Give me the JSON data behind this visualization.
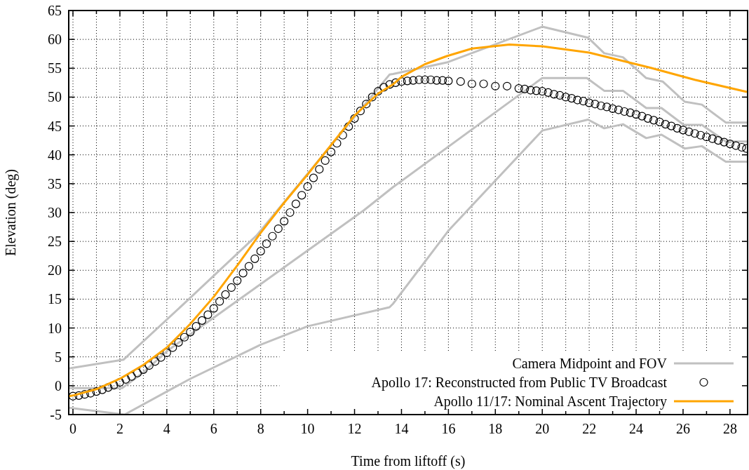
{
  "chart_data": {
    "type": "line",
    "xlabel": "Time from liftoff (s)",
    "ylabel": "Elevation (deg)",
    "xlim": [
      -0.18,
      28.75
    ],
    "ylim": [
      -5,
      65
    ],
    "xticks": [
      0,
      {
        "value": 1,
        "label": null
      },
      2,
      {
        "value": 3,
        "label": null
      },
      4,
      {
        "value": 5,
        "label": null
      },
      6,
      {
        "value": 7,
        "label": null
      },
      8,
      {
        "value": 9,
        "label": null
      },
      10,
      {
        "value": 11,
        "label": null
      },
      12,
      {
        "value": 13,
        "label": null
      },
      14,
      {
        "value": 15,
        "label": null
      },
      16,
      {
        "value": 17,
        "label": null
      },
      18,
      {
        "value": 19,
        "label": null
      },
      20,
      {
        "value": 21,
        "label": null
      },
      22,
      {
        "value": 23,
        "label": null
      },
      24,
      {
        "value": 25,
        "label": null
      },
      26,
      {
        "value": 27,
        "label": null
      },
      28
    ],
    "yticks": [
      -5,
      0,
      5,
      10,
      15,
      20,
      25,
      30,
      35,
      40,
      45,
      50,
      55,
      60,
      65
    ],
    "grid": true,
    "legend": "bottom right",
    "line_style": "solid",
    "series": [
      {
        "name": "Camera Midpoint and FOV",
        "color": "#c0c0c0",
        "x": [
          -0.18,
          2.15,
          4.94,
          7.82,
          13.49,
          13.64,
          15.93,
          20,
          21.95,
          22.64,
          23.44,
          24.43,
          25.13,
          26.07,
          26.8,
          27.82,
          28.72
        ],
        "values": [
          3,
          4.5,
          15,
          26,
          53.9,
          54,
          56,
          62.2,
          60.3,
          57.6,
          56.9,
          53.3,
          52.7,
          49.2,
          48.7,
          45.6,
          45.6
        ]
      },
      {
        "color": "#c0c0c0",
        "x": [
          -0.18,
          2.1,
          3,
          4.04,
          12.4,
          13.64,
          20,
          21.9,
          22.64,
          23.44,
          24.43,
          25.08,
          26.03,
          26.8,
          27.82,
          28.72
        ],
        "values": [
          -0.4,
          -0.4,
          2.3,
          6.1,
          30.4,
          34.4,
          53.3,
          53.3,
          51.1,
          51.1,
          48.1,
          48.1,
          45.2,
          45.2,
          42.3,
          42.3
        ]
      },
      {
        "color": "#c0c0c0",
        "x": [
          -0.18,
          2.2,
          5,
          8,
          10,
          13.49,
          13.64,
          16.03,
          20,
          21.95,
          22.64,
          23.44,
          24.43,
          25.08,
          26.07,
          26.8,
          27.82,
          28.72
        ],
        "values": [
          -3.8,
          -5,
          1.2,
          7.1,
          10.3,
          13.6,
          14.2,
          27,
          44.2,
          46.1,
          44.6,
          45.3,
          42.9,
          43.5,
          41.1,
          41.5,
          38.8,
          38.8
        ]
      },
      {
        "name": "Apollo 17: Reconstructed from Public TV Broadcast",
        "type": "scatter",
        "marker": "circle",
        "color": "#000000",
        "x": [
          0,
          0.25,
          0.5,
          0.75,
          1,
          1.25,
          1.5,
          1.75,
          2,
          2.25,
          2.5,
          2.75,
          3,
          3.25,
          3.5,
          3.75,
          4,
          4.25,
          4.5,
          4.75,
          5,
          5.25,
          5.5,
          5.75,
          6,
          6.25,
          6.5,
          6.75,
          7,
          7.25,
          7.5,
          7.75,
          8,
          8.25,
          8.5,
          8.75,
          9,
          9.25,
          9.5,
          9.75,
          10,
          10.25,
          10.5,
          10.75,
          11,
          11.25,
          11.5,
          11.75,
          12,
          12.25,
          12.5,
          12.75,
          13,
          13.25,
          13.5,
          13.75,
          14,
          14.25,
          14.5,
          14.75,
          15,
          15.25,
          15.5,
          15.75,
          16,
          16.52,
          17,
          17.5,
          18,
          18.5,
          19,
          19.25,
          19.5,
          19.75,
          20,
          20.25,
          20.5,
          20.75,
          21,
          21.25,
          21.5,
          21.75,
          22,
          22.25,
          22.5,
          22.75,
          23,
          23.25,
          23.5,
          23.75,
          24,
          24.25,
          24.5,
          24.75,
          25,
          25.25,
          25.5,
          25.75,
          26,
          26.25,
          26.5,
          26.75,
          27,
          27.25,
          27.5,
          27.75,
          28,
          28.25,
          28.5,
          28.7
        ],
        "values": [
          -1.8,
          -1.7,
          -1.5,
          -1.3,
          -1,
          -0.7,
          -0.3,
          0.1,
          0.6,
          1.1,
          1.6,
          2.2,
          2.8,
          3.5,
          4.2,
          4.9,
          5.7,
          6.6,
          7.5,
          8.4,
          9.3,
          10.3,
          11.3,
          12.3,
          13.4,
          14.6,
          15.8,
          17,
          18.2,
          19.5,
          20.7,
          22,
          23.3,
          24.6,
          25.9,
          27.2,
          28.5,
          30,
          31.5,
          33,
          34.5,
          36,
          37.5,
          39,
          40.5,
          42,
          43.4,
          44.9,
          46.3,
          47.6,
          48.8,
          50,
          51,
          51.7,
          52.2,
          52.5,
          52.7,
          52.8,
          52.9,
          53,
          53,
          53,
          52.9,
          52.9,
          52.8,
          52.7,
          52.3,
          52.3,
          51.9,
          51.9,
          51.5,
          51.4,
          51.2,
          51.1,
          51,
          50.8,
          50.5,
          50.3,
          50,
          49.8,
          49.5,
          49.3,
          49,
          48.8,
          48.5,
          48.3,
          48,
          47.8,
          47.5,
          47.3,
          47,
          46.7,
          46.3,
          46,
          45.7,
          45.3,
          45,
          44.6,
          44.3,
          44,
          43.7,
          43.4,
          43.1,
          42.8,
          42.5,
          42.2,
          41.9,
          41.6,
          41.3,
          41.1
        ]
      },
      {
        "name": "Apollo 11/17: Nominal Ascent Trajectory",
        "color": "#ffa500",
        "x": [
          -0.18,
          0,
          1,
          2,
          3,
          4,
          5,
          6,
          7,
          8,
          9,
          10,
          11,
          12,
          13,
          13.64,
          14,
          15,
          15.93,
          17,
          18.6,
          20,
          22,
          24.6,
          26.5,
          28.72
        ],
        "values": [
          -1.8,
          -1.7,
          -0.6,
          1.2,
          3.6,
          6.6,
          10.7,
          15.4,
          20.8,
          26.5,
          31.7,
          36.6,
          41.7,
          46.8,
          50.6,
          52.2,
          53.5,
          55.7,
          57.1,
          58.4,
          59.1,
          58.8,
          57.7,
          55.1,
          53,
          50.9
        ]
      }
    ]
  }
}
